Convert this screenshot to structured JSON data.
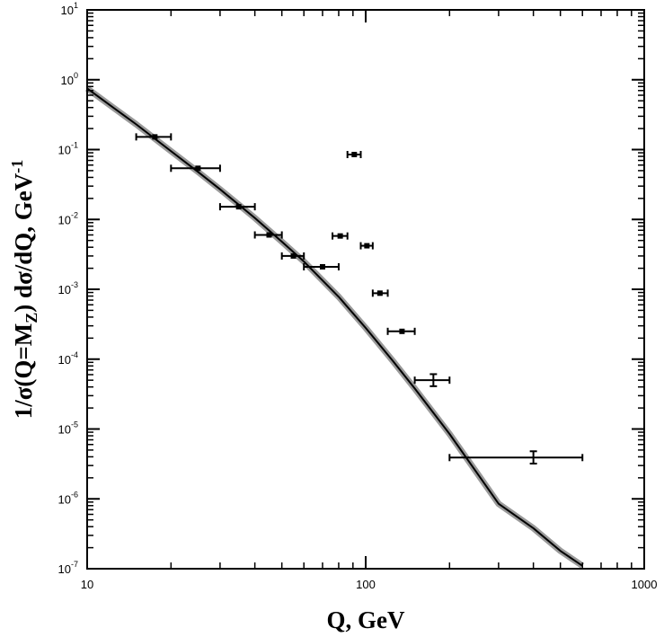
{
  "chart_data": {
    "type": "scatter",
    "title": "",
    "xlabel": "Q, GeV",
    "ylabel_parts": {
      "prefix": "1/σ(Q=M",
      "sub": "Z",
      "middle": ") dσ/dQ, GeV",
      "sup": "-1"
    },
    "x_scale": "log",
    "y_scale": "log",
    "xlim": [
      10,
      1000
    ],
    "ylim": [
      1e-07,
      10
    ],
    "x_ticks": [
      {
        "value": 10,
        "label": "10"
      },
      {
        "value": 100,
        "label": "100"
      },
      {
        "value": 1000,
        "label": "1000"
      }
    ],
    "y_ticks": [
      {
        "value": 1e-07,
        "base": "10",
        "exp": "-7"
      },
      {
        "value": 1e-06,
        "base": "10",
        "exp": "-6"
      },
      {
        "value": 1e-05,
        "base": "10",
        "exp": "-5"
      },
      {
        "value": 0.0001,
        "base": "10",
        "exp": "-4"
      },
      {
        "value": 0.001,
        "base": "10",
        "exp": "-3"
      },
      {
        "value": 0.01,
        "base": "10",
        "exp": "-2"
      },
      {
        "value": 0.1,
        "base": "10",
        "exp": "-1"
      },
      {
        "value": 1,
        "base": "10",
        "exp": "0"
      },
      {
        "value": 10,
        "base": "10",
        "exp": "1"
      }
    ],
    "grid": false,
    "legend": "none",
    "curve": {
      "color": "#000000",
      "band_color": "#9a9a9a",
      "x": [
        10,
        12,
        15,
        20,
        25,
        30,
        40,
        50,
        60,
        80,
        100,
        125,
        150,
        200,
        250,
        300,
        400,
        500,
        600
      ],
      "y": [
        0.75,
        0.44,
        0.23,
        0.095,
        0.048,
        0.027,
        0.0105,
        0.0048,
        0.0025,
        0.00078,
        0.00028,
        9.5e-05,
        3.8e-05,
        8.5e-06,
        2.4e-06,
        8.5e-07,
        3.8e-07,
        1.8e-07,
        1.1e-07
      ]
    },
    "series": [
      {
        "marker": "square",
        "color": "#000000",
        "points": [
          {
            "x": 17.5,
            "y": 0.152,
            "xerr": [
              15,
              20
            ]
          },
          {
            "x": 25,
            "y": 0.054,
            "xerr": [
              20,
              30
            ]
          },
          {
            "x": 35,
            "y": 0.0152,
            "xerr": [
              30,
              40
            ]
          },
          {
            "x": 45,
            "y": 0.006,
            "xerr": [
              40,
              50
            ]
          },
          {
            "x": 55,
            "y": 0.003,
            "xerr": [
              50,
              60
            ]
          },
          {
            "x": 70,
            "y": 0.0021,
            "xerr": [
              60,
              80
            ]
          },
          {
            "x": 81,
            "y": 0.0058,
            "xerr": [
              76,
              86
            ]
          },
          {
            "x": 91,
            "y": 0.085,
            "xerr": [
              86,
              96
            ]
          },
          {
            "x": 101,
            "y": 0.0042,
            "xerr": [
              96,
              106
            ]
          },
          {
            "x": 112.5,
            "y": 0.00088,
            "xerr": [
              106,
              120
            ]
          },
          {
            "x": 135,
            "y": 0.00025,
            "xerr": [
              120,
              150
            ]
          },
          {
            "x": 175,
            "y": 5e-05,
            "xerr": [
              150,
              200
            ],
            "yerr": [
              4.1e-05,
              6.1e-05
            ]
          },
          {
            "x": 400,
            "y": 3.9e-06,
            "xerr": [
              200,
              600
            ],
            "yerr": [
              3.2e-06,
              4.8e-06
            ]
          }
        ]
      }
    ]
  }
}
